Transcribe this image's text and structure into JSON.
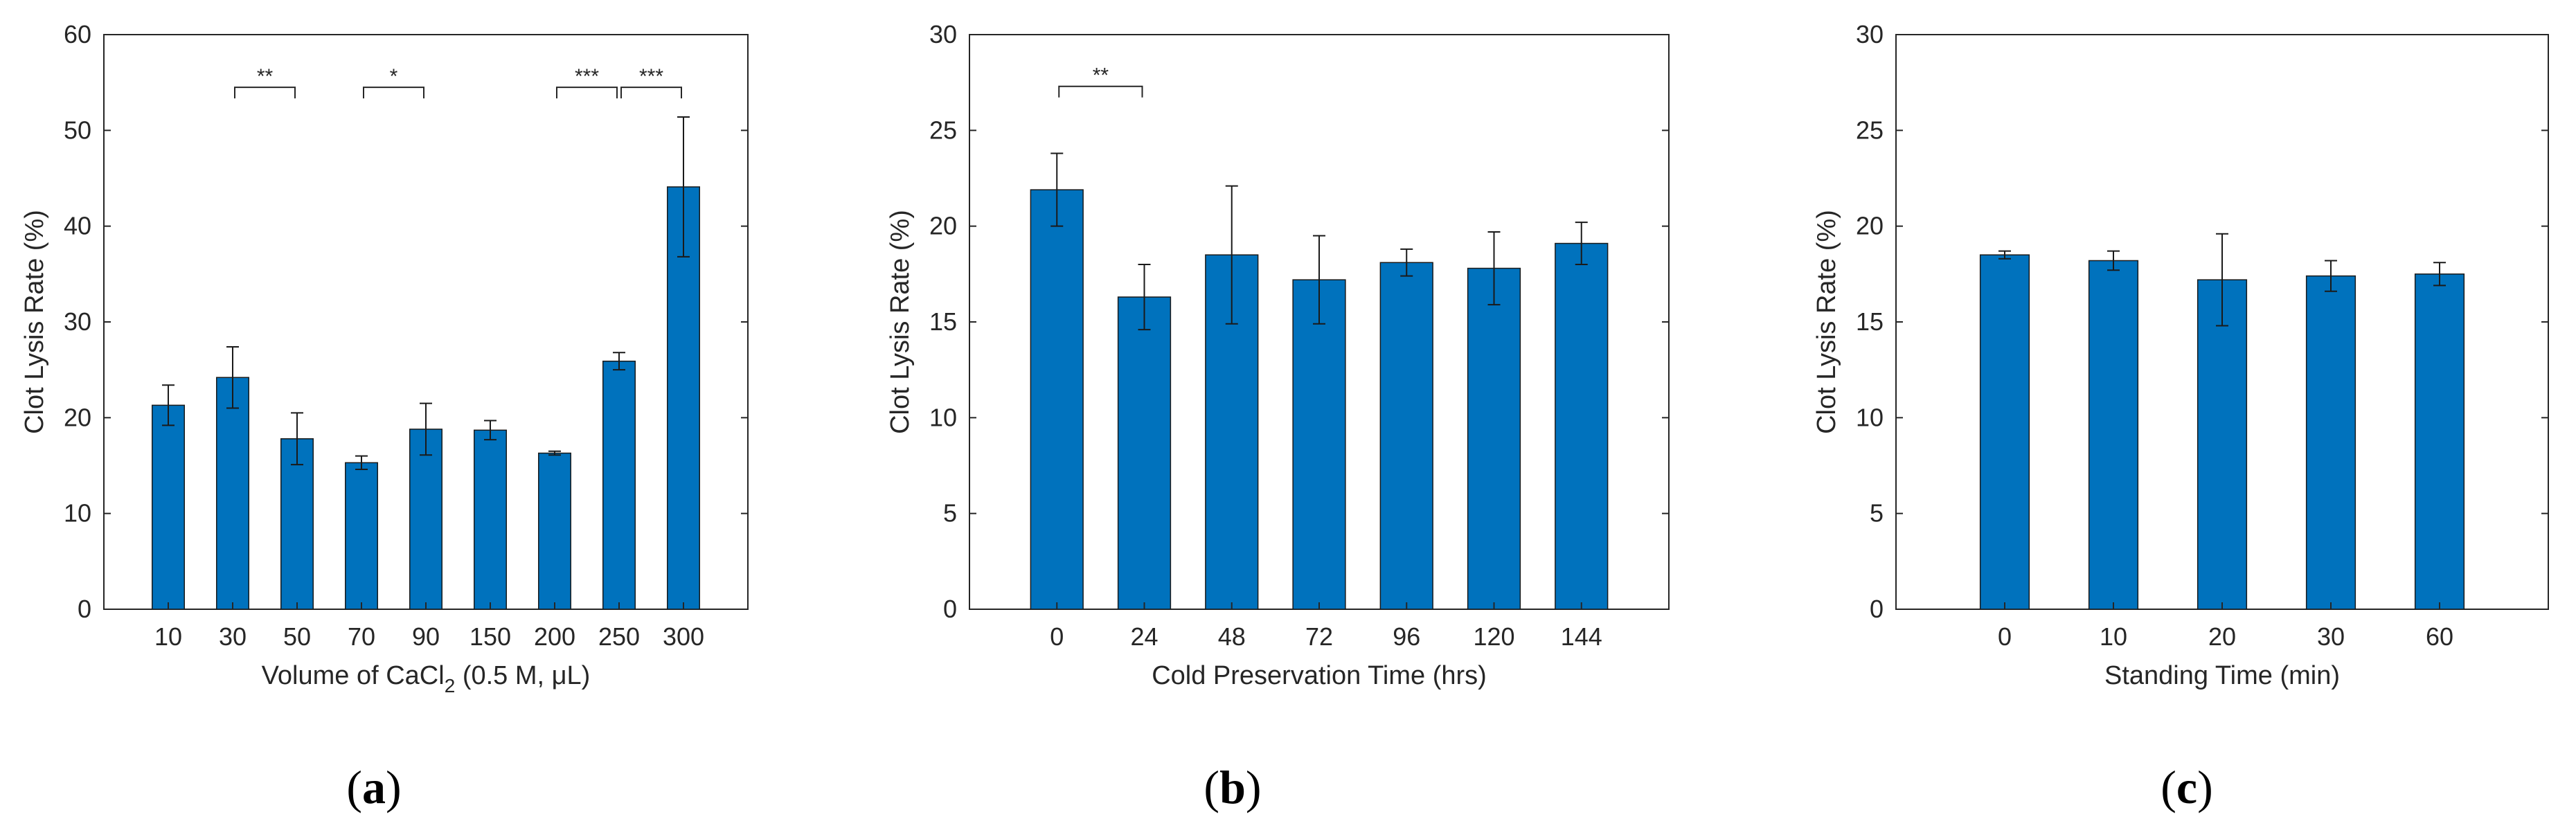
{
  "chart_data": [
    {
      "type": "bar",
      "panel_label": "(a)",
      "panel_letter": "a",
      "xlabel_main": "Volume of CaCl",
      "xlabel_sub": "2",
      "xlabel_tail": " (0.5 M, μL)",
      "ylabel": "Clot Lysis Rate (%)",
      "categories": [
        "10",
        "30",
        "50",
        "70",
        "90",
        "150",
        "200",
        "250",
        "300"
      ],
      "values": [
        21.3,
        24.2,
        17.8,
        15.3,
        18.8,
        18.7,
        16.3,
        25.9,
        44.1
      ],
      "errors": [
        2.1,
        3.2,
        2.7,
        0.7,
        2.7,
        1.0,
        0.2,
        0.9,
        7.3
      ],
      "ylim": [
        0,
        60
      ],
      "yticks": [
        0,
        10,
        20,
        30,
        40,
        50,
        60
      ],
      "significance": [
        {
          "from": 1,
          "to": 2,
          "label": "**",
          "y": 54.5
        },
        {
          "from": 3,
          "to": 4,
          "label": "*",
          "y": 54.5
        },
        {
          "from": 6,
          "to": 7,
          "label": "***",
          "y": 54.5
        },
        {
          "from": 7,
          "to": 8,
          "label": "***",
          "y": 54.5
        }
      ],
      "bar_color": "#0072BD"
    },
    {
      "type": "bar",
      "panel_label": "(b)",
      "panel_letter": "b",
      "xlabel_main": "Cold Preservation Time (hrs)",
      "xlabel_sub": "",
      "xlabel_tail": "",
      "ylabel": "Clot Lysis Rate (%)",
      "categories": [
        "0",
        "24",
        "48",
        "72",
        "96",
        "120",
        "144"
      ],
      "values": [
        21.9,
        16.3,
        18.5,
        17.2,
        18.1,
        17.8,
        19.1
      ],
      "errors": [
        1.9,
        1.7,
        3.6,
        2.3,
        0.7,
        1.9,
        1.1
      ],
      "ylim": [
        0,
        30
      ],
      "yticks": [
        0,
        5,
        10,
        15,
        20,
        25,
        30
      ],
      "significance": [
        {
          "from": 0,
          "to": 1,
          "label": "**",
          "y": 27.3
        }
      ],
      "bar_color": "#0072BD"
    },
    {
      "type": "bar",
      "panel_label": "(c)",
      "panel_letter": "c",
      "xlabel_main": "Standing Time (min)",
      "xlabel_sub": "",
      "xlabel_tail": "",
      "ylabel": "Clot Lysis Rate (%)",
      "categories": [
        "0",
        "10",
        "20",
        "30",
        "60"
      ],
      "values": [
        18.5,
        18.2,
        17.2,
        17.4,
        17.5
      ],
      "errors": [
        0.2,
        0.5,
        2.4,
        0.8,
        0.6
      ],
      "ylim": [
        0,
        30
      ],
      "yticks": [
        0,
        5,
        10,
        15,
        20,
        25,
        30
      ],
      "significance": [],
      "bar_color": "#0072BD"
    }
  ]
}
